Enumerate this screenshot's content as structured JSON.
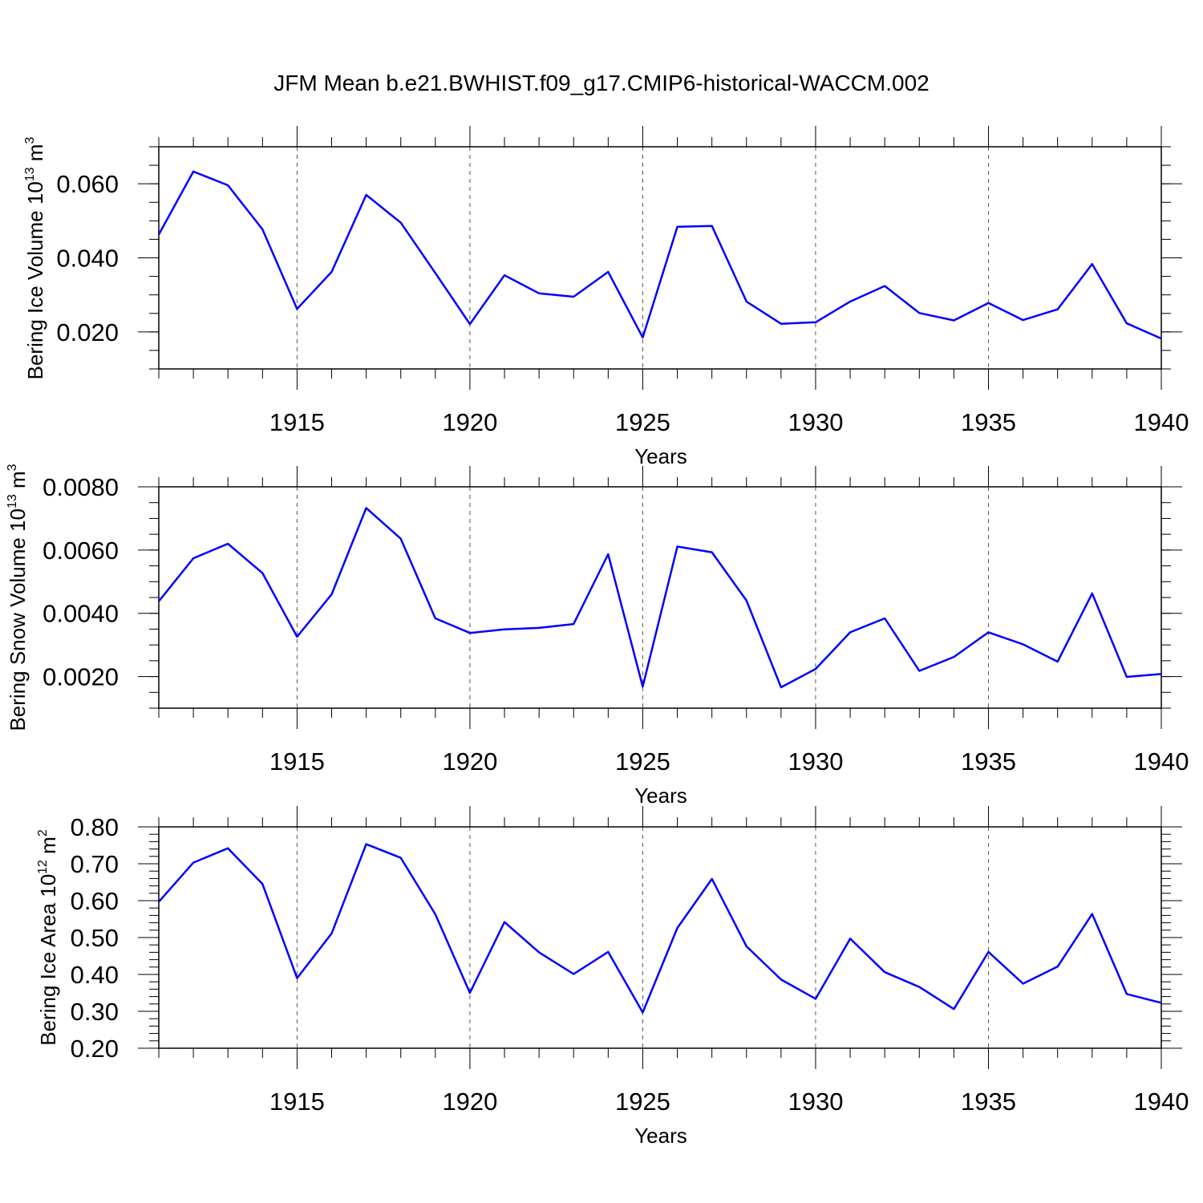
{
  "title": "JFM Mean b.e21.BWHIST.f09_g17.CMIP6-historical-WACCM.002",
  "colors": {
    "line": "#0000ff",
    "axis": "#000000",
    "grid": "#555555"
  },
  "chart_data": [
    {
      "type": "line",
      "ylabel": "Bering Ice Volume 10",
      "ylabel_sup": "13",
      "ylabel_unit": "m",
      "ylabel_unit_sup": "3",
      "xlabel": "Years",
      "xlim": [
        1911,
        1940
      ],
      "ylim": [
        0.01,
        0.07
      ],
      "yticks": [
        0.02,
        0.04,
        0.06
      ],
      "ytick_labels": [
        "0.020",
        "0.040",
        "0.060"
      ],
      "xticks": [
        1915,
        1920,
        1925,
        1930,
        1935,
        1940
      ],
      "xtick_labels": [
        "1915",
        "1920",
        "1925",
        "1930",
        "1935",
        "1940"
      ],
      "grid": "vertical dashed at major x ticks",
      "x": [
        1911,
        1912,
        1913,
        1914,
        1915,
        1916,
        1917,
        1918,
        1919,
        1920,
        1921,
        1922,
        1923,
        1924,
        1925,
        1926,
        1927,
        1928,
        1929,
        1930,
        1931,
        1932,
        1933,
        1934,
        1935,
        1936,
        1937,
        1938,
        1939,
        1940
      ],
      "series": [
        {
          "values": [
            0.0463,
            0.0633,
            0.0596,
            0.0477,
            0.0262,
            0.0362,
            0.057,
            0.0495,
            0.0359,
            0.0221,
            0.0353,
            0.0304,
            0.0295,
            0.0362,
            0.0185,
            0.0484,
            0.0486,
            0.0282,
            0.0222,
            0.0226,
            0.0282,
            0.0324,
            0.0251,
            0.0231,
            0.0278,
            0.0232,
            0.0261,
            0.0383,
            0.0223,
            0.0182
          ]
        }
      ]
    },
    {
      "type": "line",
      "ylabel": "Bering Snow Volume 10",
      "ylabel_sup": "13",
      "ylabel_unit": "m",
      "ylabel_unit_sup": "3",
      "xlabel": "Years",
      "xlim": [
        1911,
        1940
      ],
      "ylim": [
        0.001,
        0.008
      ],
      "yticks": [
        0.002,
        0.004,
        0.006,
        0.008
      ],
      "ytick_labels": [
        "0.0020",
        "0.0040",
        "0.0060",
        "0.0080"
      ],
      "xticks": [
        1915,
        1920,
        1925,
        1930,
        1935,
        1940
      ],
      "xtick_labels": [
        "1915",
        "1920",
        "1925",
        "1930",
        "1935",
        "1940"
      ],
      "grid": "vertical dashed at major x ticks",
      "x": [
        1911,
        1912,
        1913,
        1914,
        1915,
        1916,
        1917,
        1918,
        1919,
        1920,
        1921,
        1922,
        1923,
        1924,
        1925,
        1926,
        1927,
        1928,
        1929,
        1930,
        1931,
        1932,
        1933,
        1934,
        1935,
        1936,
        1937,
        1938,
        1939,
        1940
      ],
      "series": [
        {
          "values": [
            0.00438,
            0.00574,
            0.0062,
            0.00527,
            0.00326,
            0.0046,
            0.00733,
            0.00636,
            0.00384,
            0.00338,
            0.00349,
            0.00354,
            0.00366,
            0.00587,
            0.00168,
            0.00611,
            0.00593,
            0.0044,
            0.00166,
            0.00224,
            0.0034,
            0.00384,
            0.00218,
            0.00262,
            0.0034,
            0.00302,
            0.00247,
            0.00463,
            0.00199,
            0.00208
          ]
        }
      ]
    },
    {
      "type": "line",
      "ylabel": "Bering Ice Area 10",
      "ylabel_sup": "12",
      "ylabel_unit": "m",
      "ylabel_unit_sup": "2",
      "xlabel": "Years",
      "xlim": [
        1911,
        1940
      ],
      "ylim": [
        0.2,
        0.8
      ],
      "yticks": [
        0.2,
        0.3,
        0.4,
        0.5,
        0.6,
        0.7,
        0.8
      ],
      "ytick_labels": [
        "0.20",
        "0.30",
        "0.40",
        "0.50",
        "0.60",
        "0.70",
        "0.80"
      ],
      "xticks": [
        1915,
        1920,
        1925,
        1930,
        1935,
        1940
      ],
      "xtick_labels": [
        "1915",
        "1920",
        "1925",
        "1930",
        "1935",
        "1940"
      ],
      "grid": "vertical dashed at major x ticks",
      "x": [
        1911,
        1912,
        1913,
        1914,
        1915,
        1916,
        1917,
        1918,
        1919,
        1920,
        1921,
        1922,
        1923,
        1924,
        1925,
        1926,
        1927,
        1928,
        1929,
        1930,
        1931,
        1932,
        1933,
        1934,
        1935,
        1936,
        1937,
        1938,
        1939,
        1940
      ],
      "series": [
        {
          "values": [
            0.597,
            0.703,
            0.742,
            0.645,
            0.39,
            0.511,
            0.753,
            0.716,
            0.563,
            0.35,
            0.542,
            0.46,
            0.401,
            0.461,
            0.297,
            0.526,
            0.659,
            0.476,
            0.386,
            0.334,
            0.497,
            0.406,
            0.366,
            0.306,
            0.461,
            0.375,
            0.421,
            0.564,
            0.347,
            0.323
          ]
        }
      ]
    }
  ]
}
